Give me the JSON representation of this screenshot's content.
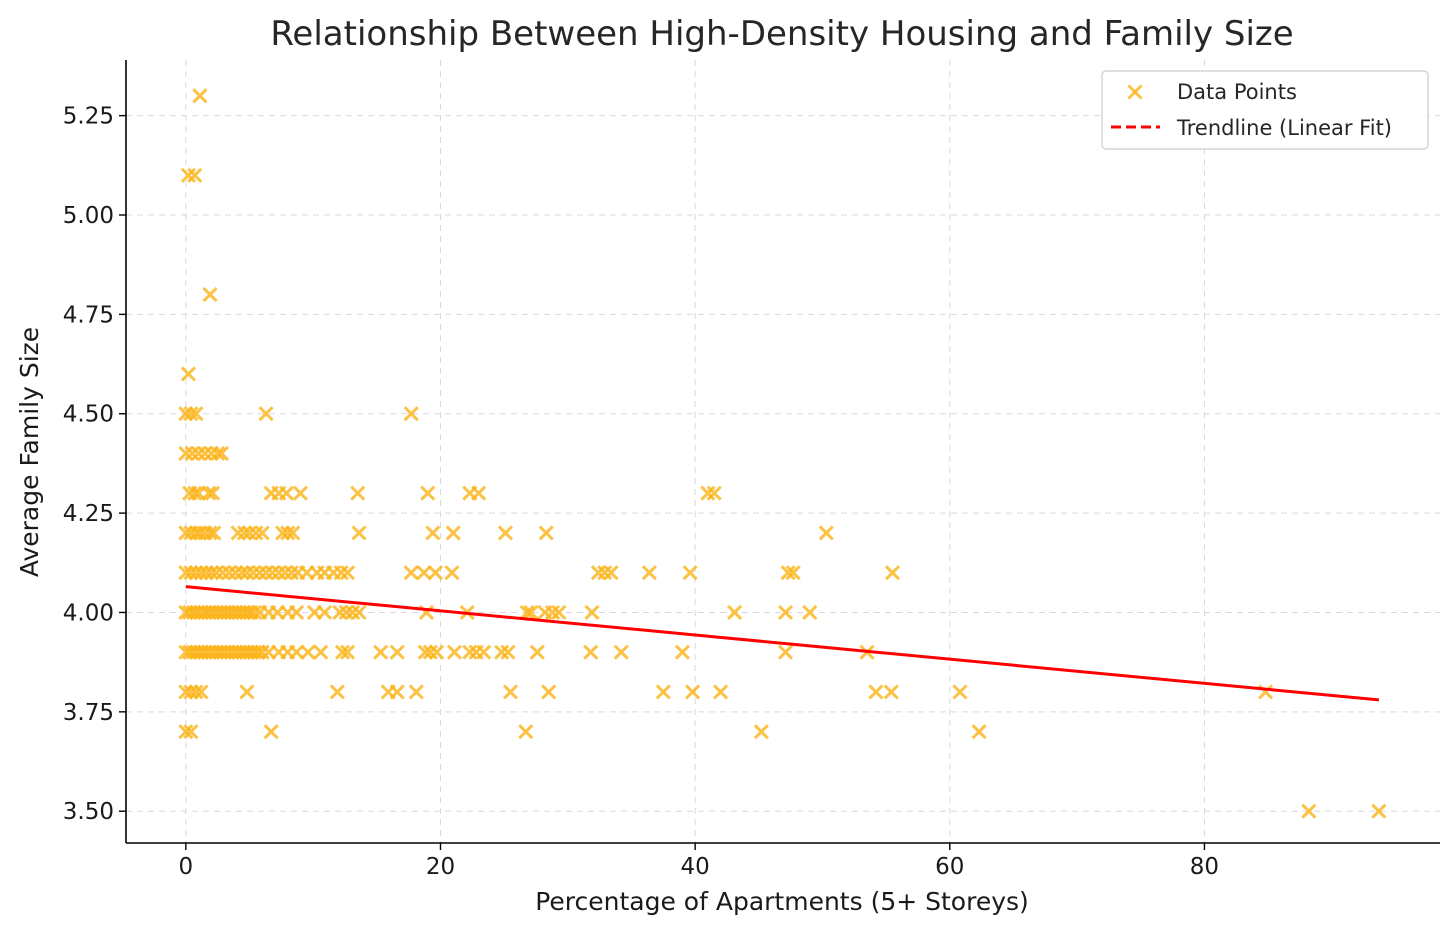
{
  "colors": {
    "points": "#FBB316",
    "trendline": "#FF0000",
    "grid": "#d9d9d9",
    "axis": "#000000"
  },
  "chart_data": {
    "type": "scatter",
    "title": "Relationship Between High-Density Housing and Family Size",
    "xlabel": "Percentage of Apartments (5+ Storeys)",
    "ylabel": "Average Family Size",
    "xlim": [
      -4.7,
      98.5
    ],
    "ylim": [
      3.42,
      5.39
    ],
    "xticks": [
      0,
      20,
      40,
      60,
      80
    ],
    "xtick_labels": [
      "0",
      "20",
      "40",
      "60",
      "80"
    ],
    "yticks": [
      3.5,
      3.75,
      4.0,
      4.25,
      4.5,
      4.75,
      5.0,
      5.25
    ],
    "ytick_labels": [
      "3.50",
      "3.75",
      "4.00",
      "4.25",
      "4.50",
      "4.75",
      "5.00",
      "5.25"
    ],
    "grid": true,
    "legend": {
      "position": "top-right",
      "entries": [
        {
          "label": "Data Points",
          "marker": "x-icon"
        },
        {
          "label": "Trendline (Linear Fit)",
          "marker": "dashed-line"
        }
      ]
    },
    "series": [
      {
        "name": "Data Points",
        "type": "scatter",
        "marker": "x",
        "points": [
          [
            1.1,
            5.3
          ],
          [
            0.2,
            5.1
          ],
          [
            0.7,
            5.1
          ],
          [
            1.9,
            4.8
          ],
          [
            0.2,
            4.6
          ],
          [
            0.0,
            4.5
          ],
          [
            0.4,
            4.5
          ],
          [
            0.8,
            4.5
          ],
          [
            6.3,
            4.5
          ],
          [
            17.7,
            4.5
          ],
          [
            0.0,
            4.4
          ],
          [
            0.5,
            4.4
          ],
          [
            1.0,
            4.4
          ],
          [
            1.5,
            4.4
          ],
          [
            2.0,
            4.4
          ],
          [
            2.5,
            4.4
          ],
          [
            2.8,
            4.4
          ],
          [
            0.3,
            4.3
          ],
          [
            0.7,
            4.3
          ],
          [
            1.0,
            4.3
          ],
          [
            1.8,
            4.3
          ],
          [
            2.1,
            4.3
          ],
          [
            6.7,
            4.3
          ],
          [
            7.3,
            4.3
          ],
          [
            7.9,
            4.3
          ],
          [
            9.0,
            4.3
          ],
          [
            13.5,
            4.3
          ],
          [
            19.0,
            4.3
          ],
          [
            22.3,
            4.3
          ],
          [
            23.0,
            4.3
          ],
          [
            41.0,
            4.3
          ],
          [
            41.5,
            4.3
          ],
          [
            0.0,
            4.2
          ],
          [
            0.4,
            4.2
          ],
          [
            0.8,
            4.2
          ],
          [
            1.1,
            4.2
          ],
          [
            1.5,
            4.2
          ],
          [
            1.9,
            4.2
          ],
          [
            2.2,
            4.2
          ],
          [
            4.1,
            4.2
          ],
          [
            4.6,
            4.2
          ],
          [
            5.0,
            4.2
          ],
          [
            5.5,
            4.2
          ],
          [
            6.0,
            4.2
          ],
          [
            7.6,
            4.2
          ],
          [
            8.0,
            4.2
          ],
          [
            8.4,
            4.2
          ],
          [
            13.6,
            4.2
          ],
          [
            19.4,
            4.2
          ],
          [
            21.0,
            4.2
          ],
          [
            25.1,
            4.2
          ],
          [
            28.3,
            4.2
          ],
          [
            50.3,
            4.2
          ],
          [
            0.0,
            4.1
          ],
          [
            0.4,
            4.1
          ],
          [
            0.8,
            4.1
          ],
          [
            1.2,
            4.1
          ],
          [
            1.6,
            4.1
          ],
          [
            2.0,
            4.1
          ],
          [
            2.4,
            4.1
          ],
          [
            2.9,
            4.1
          ],
          [
            3.4,
            4.1
          ],
          [
            3.9,
            4.1
          ],
          [
            4.4,
            4.1
          ],
          [
            4.8,
            4.1
          ],
          [
            5.3,
            4.1
          ],
          [
            5.8,
            4.1
          ],
          [
            6.3,
            4.1
          ],
          [
            6.8,
            4.1
          ],
          [
            7.3,
            4.1
          ],
          [
            7.8,
            4.1
          ],
          [
            8.3,
            4.1
          ],
          [
            8.8,
            4.1
          ],
          [
            9.5,
            4.1
          ],
          [
            10.3,
            4.1
          ],
          [
            10.9,
            4.1
          ],
          [
            11.6,
            4.1
          ],
          [
            12.2,
            4.1
          ],
          [
            12.7,
            4.1
          ],
          [
            17.7,
            4.1
          ],
          [
            18.7,
            4.1
          ],
          [
            19.6,
            4.1
          ],
          [
            20.9,
            4.1
          ],
          [
            32.4,
            4.1
          ],
          [
            32.9,
            4.1
          ],
          [
            33.4,
            4.1
          ],
          [
            36.4,
            4.1
          ],
          [
            39.6,
            4.1
          ],
          [
            47.3,
            4.1
          ],
          [
            47.7,
            4.1
          ],
          [
            55.5,
            4.1
          ],
          [
            0.0,
            4.0
          ],
          [
            0.3,
            4.0
          ],
          [
            0.6,
            4.0
          ],
          [
            0.9,
            4.0
          ],
          [
            1.2,
            4.0
          ],
          [
            1.5,
            4.0
          ],
          [
            1.8,
            4.0
          ],
          [
            2.1,
            4.0
          ],
          [
            2.4,
            4.0
          ],
          [
            2.7,
            4.0
          ],
          [
            3.0,
            4.0
          ],
          [
            3.3,
            4.0
          ],
          [
            3.6,
            4.0
          ],
          [
            3.9,
            4.0
          ],
          [
            4.2,
            4.0
          ],
          [
            4.5,
            4.0
          ],
          [
            4.8,
            4.0
          ],
          [
            5.1,
            4.0
          ],
          [
            5.4,
            4.0
          ],
          [
            5.8,
            4.0
          ],
          [
            6.5,
            4.0
          ],
          [
            7.2,
            4.0
          ],
          [
            8.0,
            4.0
          ],
          [
            8.7,
            4.0
          ],
          [
            10.1,
            4.0
          ],
          [
            10.9,
            4.0
          ],
          [
            12.1,
            4.0
          ],
          [
            12.6,
            4.0
          ],
          [
            13.1,
            4.0
          ],
          [
            13.6,
            4.0
          ],
          [
            18.9,
            4.0
          ],
          [
            22.1,
            4.0
          ],
          [
            26.8,
            4.0
          ],
          [
            27.1,
            4.0
          ],
          [
            28.2,
            4.0
          ],
          [
            28.8,
            4.0
          ],
          [
            29.3,
            4.0
          ],
          [
            31.9,
            4.0
          ],
          [
            43.1,
            4.0
          ],
          [
            47.1,
            4.0
          ],
          [
            49.0,
            4.0
          ],
          [
            0.0,
            3.9
          ],
          [
            0.3,
            3.9
          ],
          [
            0.6,
            3.9
          ],
          [
            0.9,
            3.9
          ],
          [
            1.2,
            3.9
          ],
          [
            1.5,
            3.9
          ],
          [
            1.8,
            3.9
          ],
          [
            2.1,
            3.9
          ],
          [
            2.4,
            3.9
          ],
          [
            2.7,
            3.9
          ],
          [
            3.0,
            3.9
          ],
          [
            3.3,
            3.9
          ],
          [
            3.6,
            3.9
          ],
          [
            3.9,
            3.9
          ],
          [
            4.2,
            3.9
          ],
          [
            4.5,
            3.9
          ],
          [
            4.8,
            3.9
          ],
          [
            5.1,
            3.9
          ],
          [
            5.4,
            3.9
          ],
          [
            5.7,
            3.9
          ],
          [
            6.0,
            3.9
          ],
          [
            6.5,
            3.9
          ],
          [
            7.3,
            3.9
          ],
          [
            8.0,
            3.9
          ],
          [
            8.7,
            3.9
          ],
          [
            9.6,
            3.9
          ],
          [
            10.6,
            3.9
          ],
          [
            12.3,
            3.9
          ],
          [
            12.7,
            3.9
          ],
          [
            15.3,
            3.9
          ],
          [
            16.6,
            3.9
          ],
          [
            18.8,
            3.9
          ],
          [
            19.2,
            3.9
          ],
          [
            19.7,
            3.9
          ],
          [
            21.1,
            3.9
          ],
          [
            22.3,
            3.9
          ],
          [
            22.8,
            3.9
          ],
          [
            23.4,
            3.9
          ],
          [
            24.8,
            3.9
          ],
          [
            25.3,
            3.9
          ],
          [
            27.6,
            3.9
          ],
          [
            31.8,
            3.9
          ],
          [
            34.2,
            3.9
          ],
          [
            39.0,
            3.9
          ],
          [
            47.1,
            3.9
          ],
          [
            53.5,
            3.9
          ],
          [
            0.0,
            3.8
          ],
          [
            0.4,
            3.8
          ],
          [
            0.8,
            3.8
          ],
          [
            1.2,
            3.8
          ],
          [
            4.8,
            3.8
          ],
          [
            11.9,
            3.8
          ],
          [
            15.9,
            3.8
          ],
          [
            16.6,
            3.8
          ],
          [
            18.1,
            3.8
          ],
          [
            25.5,
            3.8
          ],
          [
            28.5,
            3.8
          ],
          [
            37.5,
            3.8
          ],
          [
            39.8,
            3.8
          ],
          [
            42.0,
            3.8
          ],
          [
            54.2,
            3.8
          ],
          [
            55.4,
            3.8
          ],
          [
            60.8,
            3.8
          ],
          [
            84.8,
            3.8
          ],
          [
            0.0,
            3.7
          ],
          [
            0.4,
            3.7
          ],
          [
            6.7,
            3.7
          ],
          [
            26.7,
            3.7
          ],
          [
            45.2,
            3.7
          ],
          [
            62.3,
            3.7
          ],
          [
            88.2,
            3.5
          ],
          [
            93.7,
            3.5
          ]
        ]
      },
      {
        "name": "Trendline (Linear Fit)",
        "type": "line",
        "x": [
          0,
          93.7
        ],
        "y": [
          4.065,
          3.78
        ]
      }
    ]
  }
}
